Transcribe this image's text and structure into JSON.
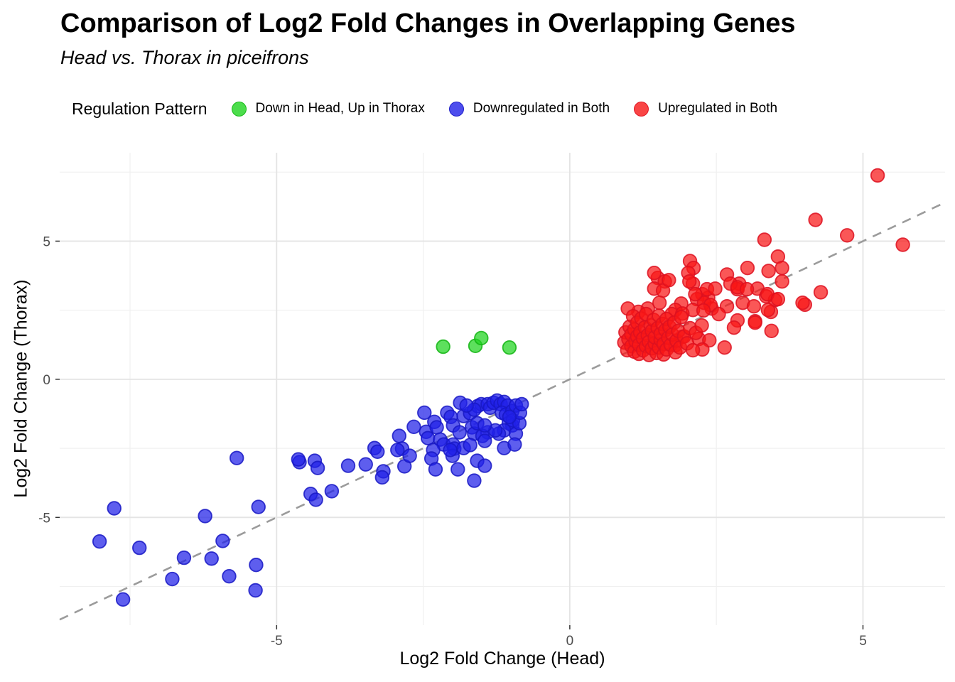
{
  "chart_data": {
    "type": "scatter",
    "title": "Comparison of Log2 Fold Changes in Overlapping Genes",
    "subtitle": "Head vs. Thorax in piceifrons",
    "xlabel": "Log2 Fold Change (Head)",
    "ylabel": "Log2 Fold Change (Thorax)",
    "legend_title": "Regulation Pattern",
    "legend_position": "top",
    "xlim": [
      -8.7,
      6.4
    ],
    "ylim": [
      -8.9,
      8.2
    ],
    "x_ticks": [
      -5,
      0,
      5
    ],
    "y_ticks": [
      -5,
      0,
      5
    ],
    "x_minor_ticks": [
      -7.5,
      -2.5,
      2.5
    ],
    "y_minor_ticks": [
      -7.5,
      -2.5,
      2.5,
      7.5
    ],
    "grid": true,
    "reference_line": {
      "type": "identity",
      "slope": 1,
      "intercept": 0,
      "style": "dashed",
      "color": "#9b9b9b"
    },
    "colors": {
      "background": "#FFFFFF",
      "major_grid": "#E4E4E4",
      "minor_grid": "#F0F0F0",
      "tick_label": "#4D4D4D",
      "tick_mark": "#333333"
    },
    "series": [
      {
        "name": "Down in Head, Up in Thorax",
        "color": "#1FD41F",
        "stroke": "#12B412",
        "points": [
          [
            -2.16,
            1.18
          ],
          [
            -1.61,
            1.21
          ],
          [
            -1.51,
            1.49
          ],
          [
            -1.03,
            1.15
          ]
        ]
      },
      {
        "name": "Downregulated in Both",
        "color": "#2020E8",
        "stroke": "#1717C4",
        "points": [
          [
            -8.02,
            -5.87
          ],
          [
            -7.77,
            -4.67
          ],
          [
            -7.62,
            -7.97
          ],
          [
            -7.34,
            -6.1
          ],
          [
            -6.78,
            -7.23
          ],
          [
            -6.58,
            -6.46
          ],
          [
            -6.22,
            -4.95
          ],
          [
            -6.11,
            -6.49
          ],
          [
            -5.92,
            -5.85
          ],
          [
            -5.81,
            -7.13
          ],
          [
            -5.68,
            -2.85
          ],
          [
            -5.35,
            -6.72
          ],
          [
            -5.36,
            -7.64
          ],
          [
            -5.31,
            -4.62
          ],
          [
            -4.61,
            -3.0
          ],
          [
            -4.63,
            -2.9
          ],
          [
            -4.35,
            -2.95
          ],
          [
            -4.3,
            -3.21
          ],
          [
            -4.42,
            -4.15
          ],
          [
            -4.33,
            -4.36
          ],
          [
            -4.06,
            -4.05
          ],
          [
            -3.78,
            -3.13
          ],
          [
            -3.48,
            -3.08
          ],
          [
            -3.33,
            -2.49
          ],
          [
            -3.28,
            -2.62
          ],
          [
            -3.18,
            -3.33
          ],
          [
            -3.2,
            -3.55
          ],
          [
            -2.91,
            -2.05
          ],
          [
            -2.86,
            -2.51
          ],
          [
            -2.82,
            -3.15
          ],
          [
            -2.73,
            -2.77
          ],
          [
            -2.94,
            -2.56
          ],
          [
            -2.66,
            -1.72
          ],
          [
            -2.48,
            -1.21
          ],
          [
            -2.45,
            -1.9
          ],
          [
            -2.42,
            -2.13
          ],
          [
            -2.31,
            -1.54
          ],
          [
            -2.27,
            -1.74
          ],
          [
            -2.21,
            -2.18
          ],
          [
            -2.15,
            -2.36
          ],
          [
            -2.33,
            -2.56
          ],
          [
            -2.36,
            -2.87
          ],
          [
            -2.29,
            -3.26
          ],
          [
            -2.09,
            -1.21
          ],
          [
            -2.03,
            -1.36
          ],
          [
            -1.99,
            -1.67
          ],
          [
            -1.99,
            -2.36
          ],
          [
            -1.97,
            -2.51
          ],
          [
            -2.0,
            -2.77
          ],
          [
            -1.91,
            -3.26
          ],
          [
            -1.87,
            -0.85
          ],
          [
            -1.81,
            -1.33
          ],
          [
            -1.7,
            -1.23
          ],
          [
            -1.67,
            -1.74
          ],
          [
            -1.81,
            -2.49
          ],
          [
            -1.88,
            -1.92
          ],
          [
            -1.63,
            -1.97
          ],
          [
            -1.58,
            -1.59
          ],
          [
            -1.57,
            -0.97
          ],
          [
            -1.51,
            -0.9
          ],
          [
            -1.4,
            -0.9
          ],
          [
            -1.36,
            -1.03
          ],
          [
            -1.3,
            -0.85
          ],
          [
            -1.24,
            -0.77
          ],
          [
            -1.18,
            -0.9
          ],
          [
            -1.12,
            -0.82
          ],
          [
            -1.06,
            -0.95
          ],
          [
            -1.16,
            -1.21
          ],
          [
            -1.09,
            -1.28
          ],
          [
            -0.98,
            -1.15
          ],
          [
            -0.92,
            -0.95
          ],
          [
            -1.04,
            -1.59
          ],
          [
            -0.98,
            -1.67
          ],
          [
            -1.12,
            -1.85
          ],
          [
            -1.21,
            -1.97
          ],
          [
            -1.4,
            -1.92
          ],
          [
            -1.49,
            -2.05
          ],
          [
            -1.45,
            -2.23
          ],
          [
            -1.27,
            -1.85
          ],
          [
            -0.97,
            -1.49
          ],
          [
            -0.92,
            -1.97
          ],
          [
            -0.86,
            -1.59
          ],
          [
            -0.85,
            -1.21
          ],
          [
            -0.82,
            -0.9
          ],
          [
            -1.03,
            -1.36
          ],
          [
            -1.45,
            -1.67
          ],
          [
            -1.63,
            -1.1
          ],
          [
            -1.76,
            -0.95
          ],
          [
            -1.7,
            -2.38
          ],
          [
            -1.58,
            -2.95
          ],
          [
            -1.63,
            -3.67
          ],
          [
            -1.45,
            -3.13
          ],
          [
            -1.12,
            -2.49
          ],
          [
            -0.94,
            -2.36
          ],
          [
            -2.04,
            -2.56
          ]
        ]
      },
      {
        "name": "Upregulated in Both",
        "color": "#F81616",
        "stroke": "#DD1020",
        "points": [
          [
            5.25,
            7.38
          ],
          [
            4.19,
            5.77
          ],
          [
            4.73,
            5.21
          ],
          [
            5.68,
            4.87
          ],
          [
            3.32,
            5.05
          ],
          [
            3.55,
            4.44
          ],
          [
            3.03,
            4.03
          ],
          [
            3.39,
            3.92
          ],
          [
            3.62,
            4.03
          ],
          [
            3.62,
            3.54
          ],
          [
            4.28,
            3.15
          ],
          [
            3.35,
            3.0
          ],
          [
            3.5,
            2.87
          ],
          [
            4.01,
            2.7
          ],
          [
            3.43,
            2.44
          ],
          [
            3.16,
            2.1
          ],
          [
            3.44,
            1.75
          ],
          [
            2.64,
            1.15
          ],
          [
            2.05,
            4.28
          ],
          [
            2.11,
            4.03
          ],
          [
            2.02,
            3.85
          ],
          [
            2.1,
            3.46
          ],
          [
            2.68,
            3.79
          ],
          [
            2.89,
            3.46
          ],
          [
            3.2,
            3.28
          ],
          [
            2.86,
            3.26
          ],
          [
            2.26,
            3.08
          ],
          [
            2.36,
            2.95
          ],
          [
            2.17,
            2.9
          ],
          [
            2.42,
            2.56
          ],
          [
            2.1,
            2.51
          ],
          [
            2.68,
            2.64
          ],
          [
            2.95,
            2.77
          ],
          [
            3.14,
            2.64
          ],
          [
            2.04,
            3.54
          ],
          [
            2.34,
            3.26
          ],
          [
            2.48,
            3.28
          ],
          [
            2.74,
            3.46
          ],
          [
            2.86,
            3.33
          ],
          [
            3.02,
            3.26
          ],
          [
            3.37,
            3.08
          ],
          [
            3.55,
            2.9
          ],
          [
            3.97,
            2.77
          ],
          [
            3.38,
            2.51
          ],
          [
            2.29,
            2.77
          ],
          [
            2.4,
            2.69
          ],
          [
            2.54,
            2.36
          ],
          [
            2.28,
            2.49
          ],
          [
            2.14,
            3.08
          ],
          [
            1.9,
            2.74
          ],
          [
            1.8,
            2.51
          ],
          [
            2.86,
            2.13
          ],
          [
            2.8,
            1.87
          ],
          [
            3.16,
            2.05
          ],
          [
            2.2,
            1.46
          ],
          [
            1.92,
            1.54
          ],
          [
            1.8,
            1.23
          ],
          [
            1.5,
            3.67
          ],
          [
            1.62,
            3.54
          ],
          [
            1.44,
            3.28
          ],
          [
            1.59,
            3.21
          ],
          [
            1.69,
            3.59
          ],
          [
            1.53,
            2.77
          ],
          [
            1.33,
            2.56
          ],
          [
            1.17,
            2.44
          ],
          [
            0.99,
            2.56
          ],
          [
            1.74,
            2.36
          ],
          [
            1.92,
            2.38
          ],
          [
            1.44,
            3.85
          ],
          [
            2.38,
            1.41
          ],
          [
            2.26,
            1.08
          ],
          [
            0.93,
            1.33
          ],
          [
            0.95,
            1.7
          ],
          [
            0.98,
            1.05
          ],
          [
            1.0,
            1.45
          ],
          [
            1.02,
            1.9
          ],
          [
            1.05,
            1.2
          ],
          [
            1.05,
            1.62
          ],
          [
            1.08,
            2.28
          ],
          [
            1.1,
            1.0
          ],
          [
            1.1,
            1.8
          ],
          [
            1.12,
            1.38
          ],
          [
            1.15,
            1.55
          ],
          [
            1.15,
            2.05
          ],
          [
            1.18,
            0.92
          ],
          [
            1.18,
            1.25
          ],
          [
            1.2,
            1.7
          ],
          [
            1.22,
            2.2
          ],
          [
            1.25,
            1.05
          ],
          [
            1.25,
            1.48
          ],
          [
            1.28,
            1.88
          ],
          [
            1.3,
            1.2
          ],
          [
            1.3,
            2.36
          ],
          [
            1.33,
            1.6
          ],
          [
            1.35,
            0.88
          ],
          [
            1.35,
            1.35
          ],
          [
            1.38,
            1.95
          ],
          [
            1.4,
            1.12
          ],
          [
            1.4,
            1.75
          ],
          [
            1.43,
            2.15
          ],
          [
            1.45,
            1.3
          ],
          [
            1.45,
            1.52
          ],
          [
            1.48,
            0.95
          ],
          [
            1.5,
            1.85
          ],
          [
            1.52,
            1.15
          ],
          [
            1.52,
            2.3
          ],
          [
            1.55,
            1.42
          ],
          [
            1.55,
            1.65
          ],
          [
            1.58,
            2.0
          ],
          [
            1.6,
            0.9
          ],
          [
            1.6,
            1.28
          ],
          [
            1.63,
            1.78
          ],
          [
            1.65,
            1.08
          ],
          [
            1.65,
            2.18
          ],
          [
            1.68,
            1.5
          ],
          [
            1.7,
            1.9
          ],
          [
            1.72,
            1.25
          ],
          [
            1.75,
            1.62
          ],
          [
            1.78,
            2.05
          ],
          [
            1.8,
            0.98
          ],
          [
            1.82,
            1.4
          ],
          [
            1.85,
            1.75
          ],
          [
            1.88,
            1.15
          ],
          [
            1.9,
            2.25
          ],
          [
            1.95,
            1.55
          ],
          [
            2.0,
            1.3
          ],
          [
            2.05,
            1.85
          ],
          [
            2.1,
            1.05
          ],
          [
            2.15,
            1.68
          ],
          [
            2.25,
            1.95
          ]
        ]
      }
    ]
  }
}
